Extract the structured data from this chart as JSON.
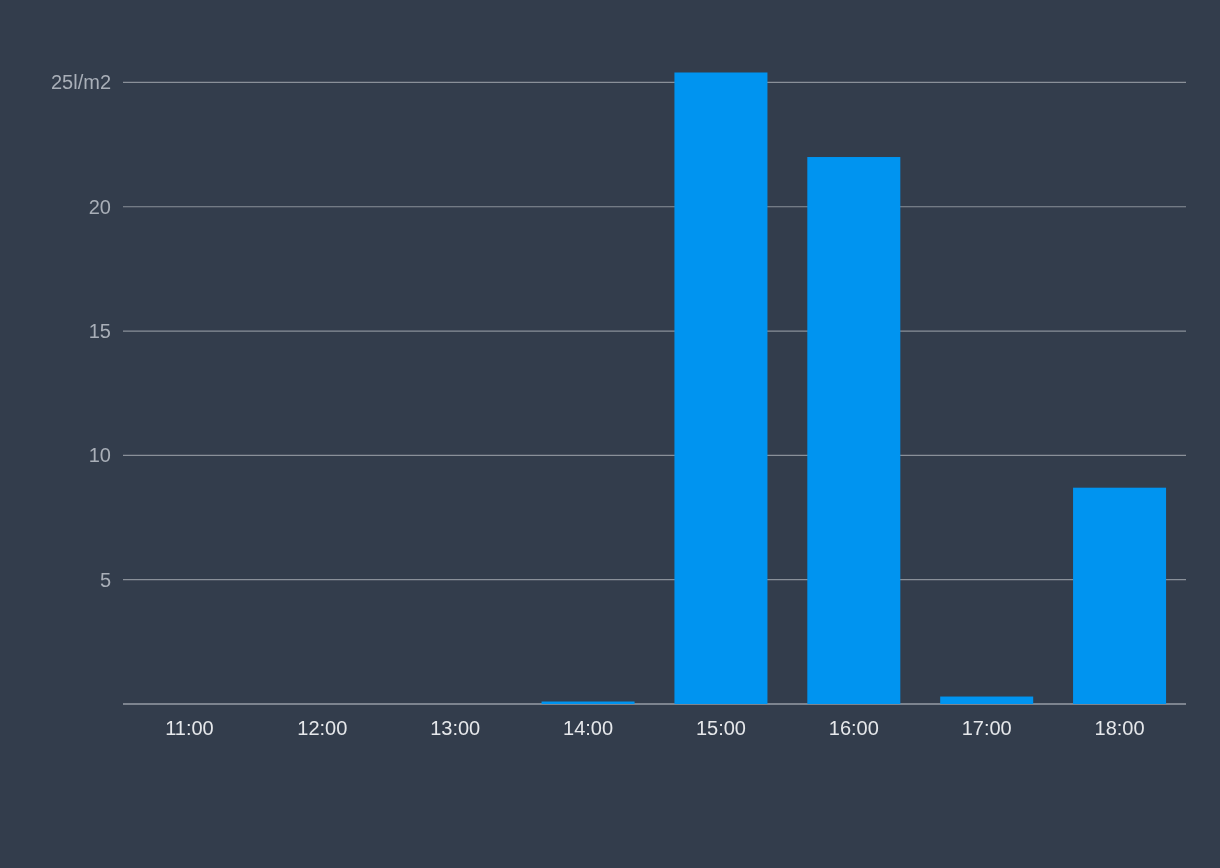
{
  "chart_data": {
    "type": "bar",
    "categories": [
      "11:00",
      "12:00",
      "13:00",
      "14:00",
      "15:00",
      "16:00",
      "17:00",
      "18:00"
    ],
    "values": [
      0,
      0,
      0,
      0.1,
      25.4,
      22,
      0.3,
      8.7
    ],
    "color": "#0094f0",
    "ylim": [
      0,
      25.5
    ],
    "yticks": [
      {
        "value": 0,
        "label": null
      },
      5,
      10,
      15,
      20,
      {
        "value": 25,
        "label": "25l/m2"
      }
    ],
    "grid": "y"
  }
}
